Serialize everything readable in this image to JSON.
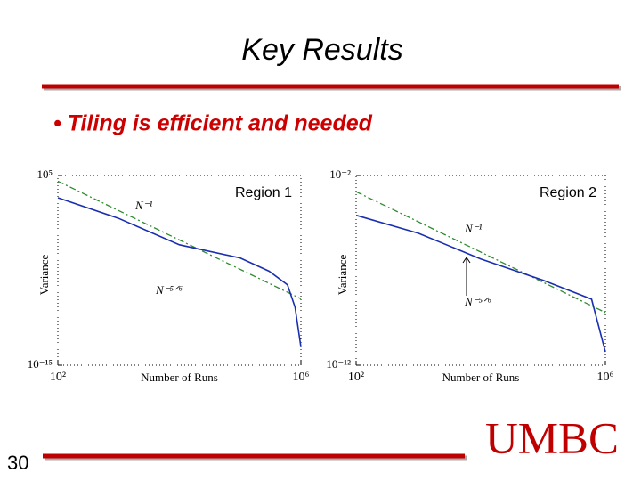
{
  "header": {
    "title": "Key Results"
  },
  "bullet": "• Tiling is efficient and needed",
  "footer": {
    "page_number": "30",
    "logo": "UMBC"
  },
  "chart_data": [
    {
      "type": "line",
      "annotation": "Region 1",
      "xlabel": "Number of Runs",
      "ylabel": "Variance",
      "log_x": true,
      "log_y": true,
      "xlim": [
        100,
        1000000
      ],
      "ylim": [
        1e-15,
        100000
      ],
      "xticks": [
        {
          "value": 100,
          "label": "10²"
        },
        {
          "value": 1000000,
          "label": "10⁶"
        }
      ],
      "yticks": [
        {
          "value": 1e-15,
          "label": "10⁻¹⁵"
        },
        {
          "value": 100000,
          "label": "10⁵"
        }
      ],
      "series": [
        {
          "name": "N⁻¹",
          "color": "#2e8b2e",
          "style": "dashdot",
          "x": [
            100,
            1000000
          ],
          "values": [
            25000,
            1e-08
          ]
        },
        {
          "name": "N⁻⁵ᐟ⁶",
          "color": "#1a2fb0",
          "style": "solid",
          "x": [
            100,
            1000,
            10000,
            100000,
            300000,
            600000,
            800000,
            1000000
          ],
          "values": [
            450,
            3,
            0.005,
            0.0002,
            8e-06,
            3e-07,
            1.3e-09,
            8e-14
          ]
        }
      ]
    },
    {
      "type": "line",
      "annotation": "Region 2",
      "xlabel": "Number of Runs",
      "ylabel": "Variance",
      "log_x": true,
      "log_y": true,
      "xlim": [
        100,
        1000000
      ],
      "ylim": [
        1e-12,
        0.01
      ],
      "xticks": [
        {
          "value": 100,
          "label": "10²"
        },
        {
          "value": 1000000,
          "label": "10⁶"
        }
      ],
      "yticks": [
        {
          "value": 1e-12,
          "label": "10⁻¹²"
        },
        {
          "value": 0.01,
          "label": "10⁻²"
        }
      ],
      "series": [
        {
          "name": "N⁻¹",
          "color": "#2e8b2e",
          "style": "dashdot",
          "x": [
            100,
            1000000
          ],
          "values": [
            0.0014,
            6e-10
          ]
        },
        {
          "name": "N⁻⁵ᐟ⁶",
          "color": "#1a2fb0",
          "style": "solid",
          "x": [
            100,
            1000,
            10000,
            100000,
            600000,
            1000000
          ],
          "values": [
            8e-05,
            9e-06,
            4e-07,
            3e-08,
            3e-09,
            5e-12
          ]
        }
      ]
    }
  ]
}
